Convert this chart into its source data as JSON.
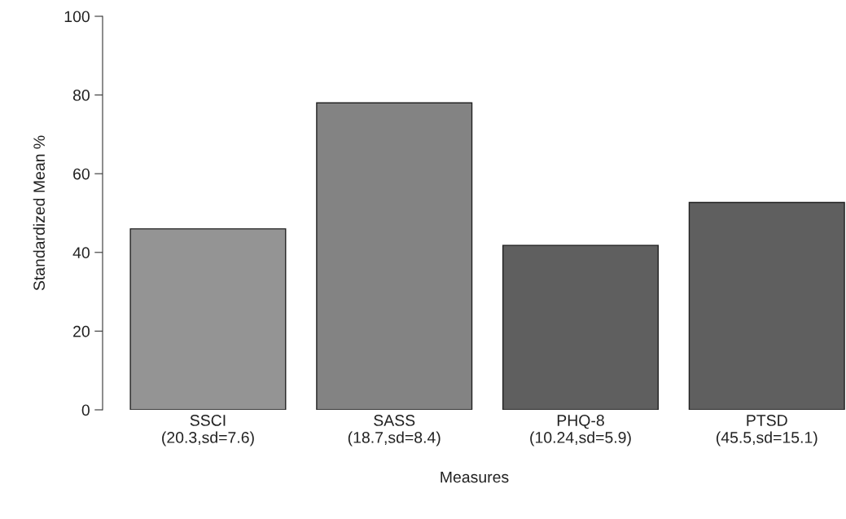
{
  "chart_data": {
    "type": "bar",
    "xlabel": "Measures",
    "ylabel": "Standardized Mean %",
    "categories": [
      "SSCI\n(20.3,sd=7.6)",
      "SASS\n(18.7,sd=8.4)",
      "PHQ-8\n(10.24,sd=5.9)",
      "PTSD\n(45.5,sd=15.1)"
    ],
    "values": [
      46.0,
      78.0,
      41.8,
      52.7
    ],
    "colors": [
      "#949494",
      "#838383",
      "#5f5f5f",
      "#5f5f5f"
    ],
    "ylim": [
      0,
      100
    ],
    "yticks": [
      0,
      20,
      40,
      60,
      80,
      100
    ],
    "grid": false,
    "legend": false
  }
}
